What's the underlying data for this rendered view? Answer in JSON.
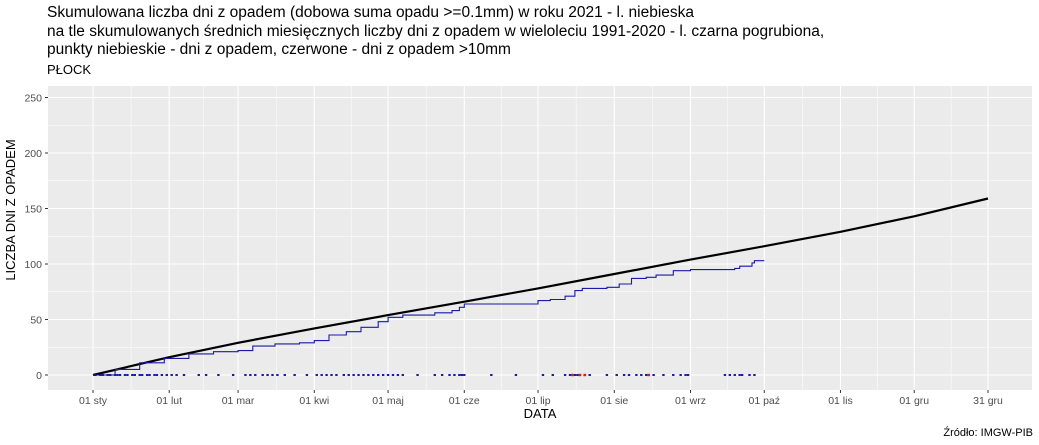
{
  "title": {
    "lines": [
      "Skumulowana liczba dni z opadem (dobowa suma opadu >=0.1mm) w roku 2021 - l. niebieska",
      "na tle skumulowanych średnich miesięcznych liczby dni z opadem w wieloleciu 1991-2020 - l. czarna pogrubiona,",
      "punkty niebieskie - dni z opadem, czerwone - dni z opadem >10mm"
    ],
    "subtitle": "PŁOCK"
  },
  "source": "Źródło: IMGW-PIB",
  "colors": {
    "panel": "#ebebeb",
    "grid": "#ffffff",
    "actual": "#1a1aa8",
    "normal": "#000000",
    "heavy": "#e31a1c"
  },
  "chart_data": {
    "type": "line",
    "xlabel": "DATA",
    "ylabel": "LICZBA DNI Z OPADEM",
    "ylim": [
      0,
      260
    ],
    "yticks": [
      0,
      50,
      100,
      150,
      200,
      250
    ],
    "xlim": [
      1,
      365
    ],
    "xticks": [
      {
        "day": 1,
        "label": "01 sty"
      },
      {
        "day": 32,
        "label": "01 lut"
      },
      {
        "day": 60,
        "label": "01 mar"
      },
      {
        "day": 91,
        "label": "01 kwi"
      },
      {
        "day": 121,
        "label": "01 maj"
      },
      {
        "day": 152,
        "label": "01 cze"
      },
      {
        "day": 182,
        "label": "01 lip"
      },
      {
        "day": 213,
        "label": "01 sie"
      },
      {
        "day": 244,
        "label": "01 wrz"
      },
      {
        "day": 274,
        "label": "01 paź"
      },
      {
        "day": 305,
        "label": "01 lis"
      },
      {
        "day": 335,
        "label": "01 gru"
      },
      {
        "day": 365,
        "label": "31 gru"
      }
    ],
    "grid": true,
    "series": [
      {
        "role": "normal-1991-2020",
        "x": [
          1,
          32,
          60,
          91,
          121,
          152,
          182,
          213,
          244,
          274,
          305,
          335,
          365
        ],
        "y": [
          0,
          16,
          29,
          42,
          54,
          66,
          78,
          91,
          104,
          116,
          129,
          143,
          159
        ]
      },
      {
        "role": "actual-2021",
        "x": [
          1,
          10,
          20,
          30,
          40,
          50,
          60,
          66,
          75,
          85,
          91,
          97,
          104,
          110,
          117,
          121,
          127,
          133,
          140,
          147,
          150,
          152,
          160,
          170,
          182,
          187,
          193,
          197,
          200,
          205,
          210,
          215,
          220,
          226,
          230,
          237,
          244,
          250,
          256,
          262,
          264,
          269,
          270,
          274
        ],
        "y": [
          0,
          5,
          11,
          15,
          19,
          21,
          22,
          26,
          28,
          29,
          31,
          36,
          39,
          43,
          48,
          52,
          54,
          54,
          56,
          58,
          61,
          64,
          64,
          64,
          67,
          68,
          71,
          76,
          78,
          78,
          79,
          82,
          87,
          88,
          90,
          94,
          95,
          95,
          95,
          96,
          98,
          101,
          103,
          103
        ]
      }
    ],
    "rain_days": [
      2,
      4,
      5,
      7,
      8,
      10,
      11,
      12,
      14,
      15,
      17,
      18,
      20,
      21,
      23,
      24,
      26,
      27,
      29,
      31,
      33,
      35,
      38,
      44,
      47,
      52,
      58,
      63,
      65,
      67,
      70,
      72,
      74,
      76,
      79,
      83,
      88,
      92,
      94,
      96,
      98,
      100,
      103,
      105,
      107,
      109,
      111,
      113,
      115,
      117,
      119,
      121,
      123,
      125,
      127,
      133,
      140,
      143,
      146,
      148,
      150,
      151,
      152,
      163,
      173,
      184,
      188,
      193,
      195,
      197,
      198,
      199,
      203,
      210,
      214,
      217,
      219,
      222,
      224,
      226,
      229,
      233,
      237,
      240,
      242,
      243,
      258,
      260,
      262,
      264,
      265,
      268,
      270
    ],
    "heavy_days": [
      196,
      199,
      201,
      227
    ]
  }
}
